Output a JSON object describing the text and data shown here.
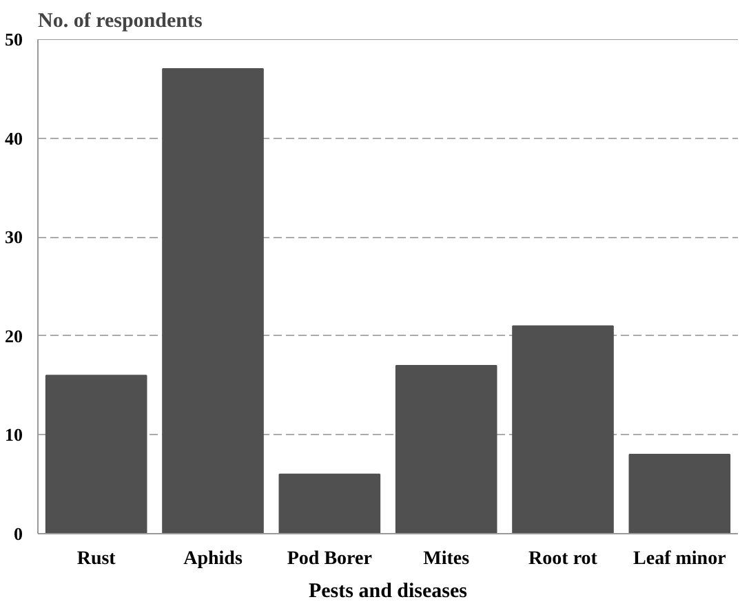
{
  "chart_data": {
    "type": "bar",
    "xlabel": "Pests and diseases",
    "ylabel": "No. of respondents",
    "categories": [
      "Rust",
      "Aphids",
      "Pod Borer",
      "Mites",
      "Root rot",
      "Leaf minor"
    ],
    "values": [
      16,
      47,
      6,
      17,
      21,
      8
    ],
    "color": "#505050",
    "ylim": [
      0,
      50
    ],
    "yticks": [
      0,
      10,
      20,
      30,
      40,
      50
    ],
    "grid": "y"
  }
}
